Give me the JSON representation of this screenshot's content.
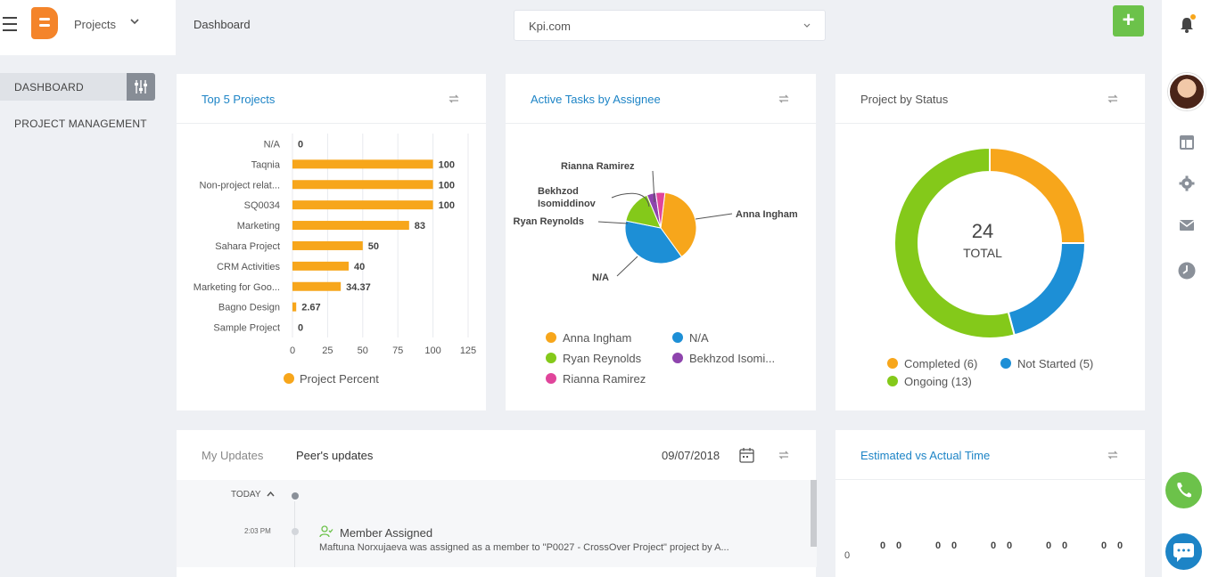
{
  "app": {
    "module_name": "Projects",
    "page_title": "Dashboard",
    "site_selector": "Kpi.com",
    "add_button": "+"
  },
  "sidebar": {
    "items": [
      {
        "label": "DASHBOARD",
        "active": true
      },
      {
        "label": "PROJECT MANAGEMENT",
        "active": false
      }
    ]
  },
  "colors": {
    "accent": "#1d84c6",
    "orange": "#f7a61b",
    "blue": "#1d8fd6",
    "green": "#84c91a",
    "purple": "#8e44ad",
    "pink": "#e0459b",
    "add_green": "#6cc24a"
  },
  "cards": {
    "top5": {
      "title": "Top 5 Projects",
      "legend": "Project Percent"
    },
    "active_tasks": {
      "title": "Active Tasks by Assignee"
    },
    "status": {
      "title": "Project by Status",
      "center_value": "24",
      "center_label": "TOTAL"
    },
    "updates": {
      "tab_mine": "My Updates",
      "tab_peer": "Peer's updates",
      "date": "09/07/2018"
    },
    "estimated": {
      "title": "Estimated vs Actual Time",
      "y_zero": "0",
      "pair_label": "0"
    }
  },
  "timeline": {
    "group": "TODAY",
    "entries": [
      {
        "time": "2:03 PM",
        "title": "Member Assigned",
        "text": "Maftuna Norxujaeva was assigned as a member to \"P0027 - CrossOver Project\" project by A..."
      }
    ]
  },
  "chart_data": [
    {
      "type": "bar",
      "orientation": "horizontal",
      "categories": [
        "N/A",
        "Taqnia",
        "Non-project relat...",
        "SQ0034",
        "Marketing",
        "Sahara Project",
        "CRM Activities",
        "Marketing for Goo...",
        "Bagno Design",
        "Sample Project"
      ],
      "series": [
        {
          "name": "Project Percent",
          "values": [
            0,
            100,
            100,
            100,
            83,
            50,
            40,
            34.37,
            2.67,
            0
          ],
          "labels": [
            "0",
            "100",
            "100",
            "100",
            "83",
            "50",
            "40",
            "34.37",
            "2.67",
            "0"
          ],
          "color": "#f7a61b"
        }
      ],
      "xlim": [
        0,
        125
      ],
      "xticks": [
        "0",
        "25",
        "50",
        "75",
        "100",
        "125"
      ],
      "grid": true,
      "legend": "bottom"
    },
    {
      "type": "pie",
      "slices": [
        {
          "label": "Anna Ingham",
          "value": 37,
          "color": "#f7a61b"
        },
        {
          "label": "N/A",
          "value": 37,
          "color": "#1d8fd6"
        },
        {
          "label": "Ryan Reynolds",
          "value": 15,
          "color": "#84c91a"
        },
        {
          "label": "Bekhzod Isomiddinov",
          "value": 4,
          "color": "#8e44ad"
        },
        {
          "label": "Rianna Ramirez",
          "value": 4,
          "color": "#e0459b"
        }
      ],
      "legend": [
        "Anna Ingham",
        "N/A",
        "Ryan Reynolds",
        "Bekhzod Isomi...",
        "Rianna Ramirez"
      ],
      "callouts": [
        "Anna Ingham",
        "N/A",
        "Ryan Reynolds",
        "Bekhzod",
        "Isomiddinov",
        "Rianna Ramirez"
      ]
    },
    {
      "type": "pie",
      "donut": true,
      "slices": [
        {
          "label": "Completed",
          "value": 6,
          "color": "#f7a61b"
        },
        {
          "label": "Not Started",
          "value": 5,
          "color": "#1d8fd6"
        },
        {
          "label": "Ongoing",
          "value": 13,
          "color": "#84c91a"
        }
      ],
      "legend": [
        "Completed (6)",
        "Not Started (5)",
        "Ongoing (13)"
      ],
      "center_text": "24",
      "center_subtext": "TOTAL"
    },
    {
      "type": "bar",
      "title": "",
      "categories": [
        "",
        "",
        "",
        "",
        ""
      ],
      "series": [
        {
          "values": [
            0,
            0,
            0,
            0,
            0
          ]
        },
        {
          "values": [
            0,
            0,
            0,
            0,
            0
          ]
        }
      ],
      "y_tick": "0"
    }
  ]
}
